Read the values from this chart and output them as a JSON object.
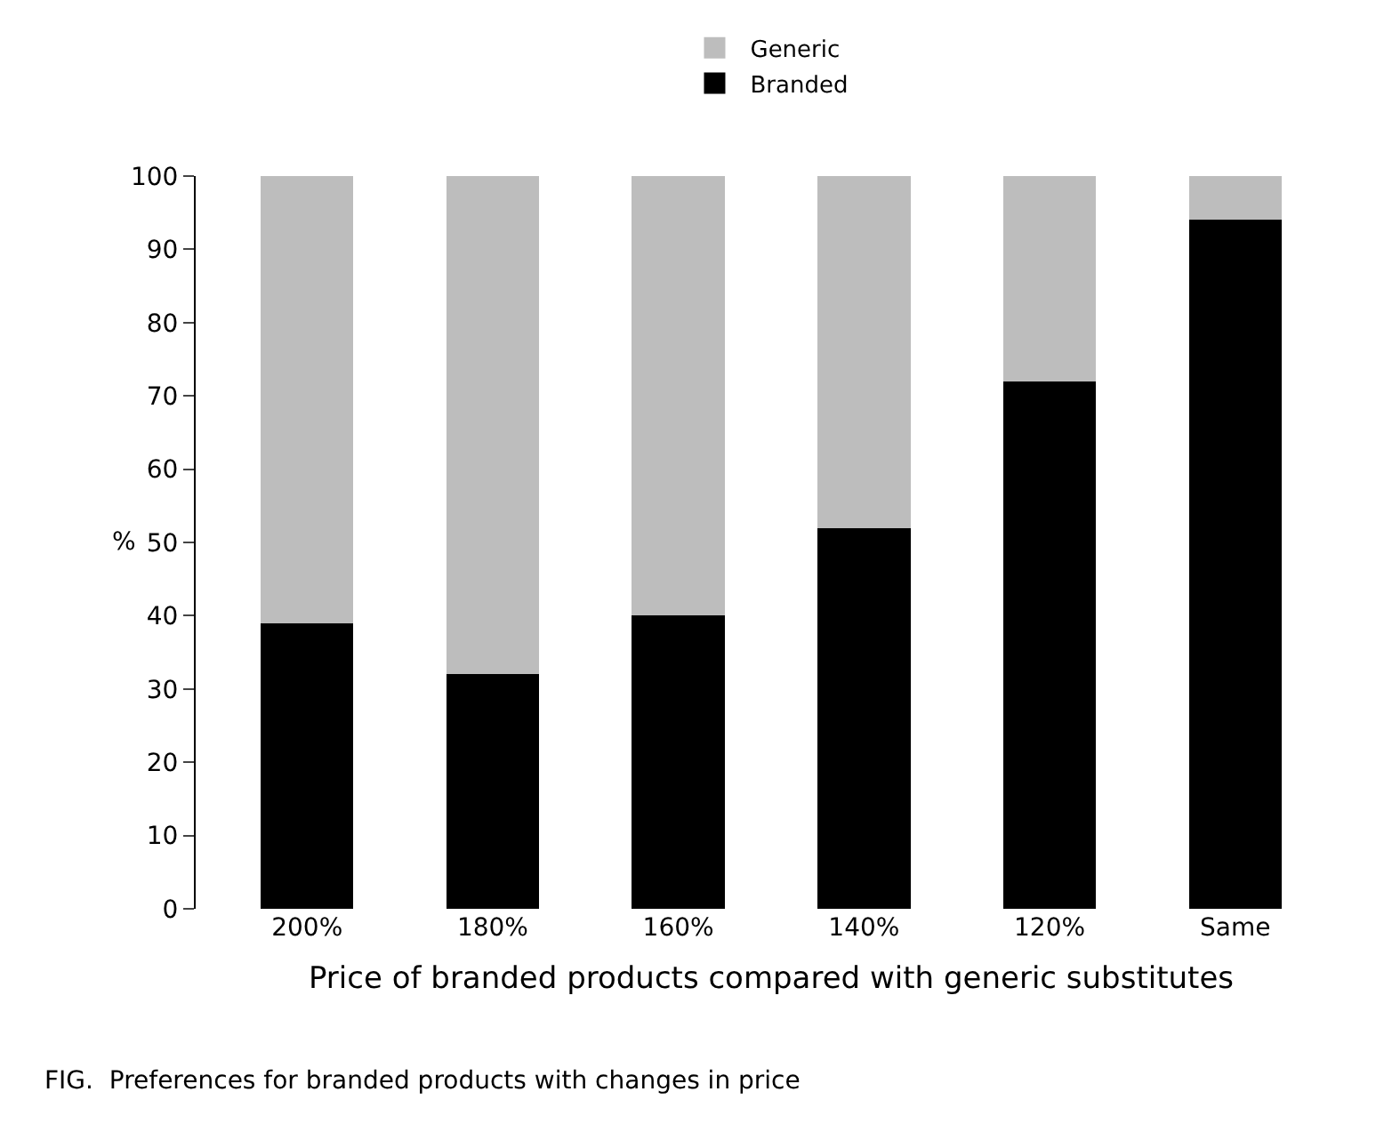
{
  "chart_data": {
    "type": "bar",
    "stacked": true,
    "categories": [
      "200%",
      "180%",
      "160%",
      "140%",
      "120%",
      "Same"
    ],
    "series": [
      {
        "name": "Branded",
        "color": "#000000",
        "values": [
          39,
          32,
          40,
          52,
          72,
          94
        ]
      },
      {
        "name": "Generic",
        "color": "#bdbdbd",
        "values": [
          61,
          68,
          60,
          48,
          28,
          6
        ]
      }
    ],
    "xlabel": "Price of branded products compared with generic substitutes",
    "ylabel": "%",
    "ylim": [
      0,
      100
    ],
    "yticks": [
      0,
      10,
      20,
      30,
      40,
      50,
      60,
      70,
      80,
      90,
      100
    ],
    "legend": "top",
    "annotations": [
      "FIG.  Preferences for branded products with changes in price"
    ]
  }
}
